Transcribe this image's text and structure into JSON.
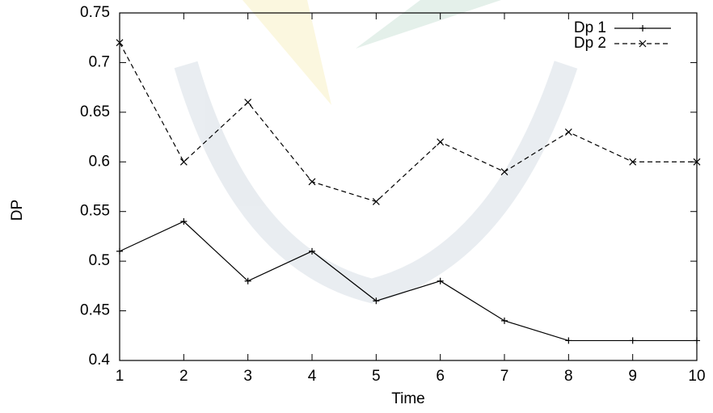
{
  "chart_data": {
    "type": "line",
    "x_label": "Time",
    "y_label": "DP",
    "x": [
      1,
      2,
      3,
      4,
      5,
      6,
      7,
      8,
      9,
      10
    ],
    "series": [
      {
        "name": "Dp 1",
        "color": "#000000",
        "dash": false,
        "marker": "plus",
        "values": [
          0.51,
          0.54,
          0.48,
          0.51,
          0.46,
          0.48,
          0.44,
          0.42,
          0.42,
          0.42
        ]
      },
      {
        "name": "Dp 2",
        "color": "#000000",
        "dash": true,
        "marker": "cross",
        "values": [
          0.72,
          0.6,
          0.66,
          0.58,
          0.56,
          0.62,
          0.59,
          0.63,
          0.6,
          0.6
        ]
      }
    ],
    "xlim": [
      1,
      10
    ],
    "xticks": [
      1,
      2,
      3,
      4,
      5,
      6,
      7,
      8,
      9,
      10
    ],
    "ylim": [
      0.4,
      0.75
    ],
    "yticks": [
      0.4,
      0.45,
      0.5,
      0.55,
      0.6,
      0.65,
      0.7,
      0.75
    ],
    "legend": "top-right",
    "grid": false
  }
}
